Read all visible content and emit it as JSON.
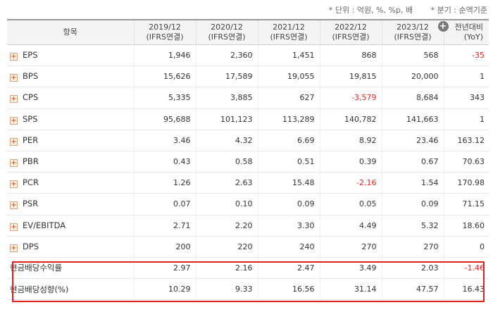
{
  "notes": {
    "unit": "* 단위 : 억원, %, %p, 배",
    "period": "* 분기 : 순액기준"
  },
  "header": {
    "item_label": "항목",
    "columns": [
      {
        "year": "2019/12",
        "basis": "(IFRS연결)"
      },
      {
        "year": "2020/12",
        "basis": "(IFRS연결)"
      },
      {
        "year": "2021/12",
        "basis": "(IFRS연결)"
      },
      {
        "year": "2022/12",
        "basis": "(IFRS연결)"
      },
      {
        "year": "2023/12",
        "basis": "(IFRS연결)"
      }
    ],
    "yoy": {
      "line1": "전년대비",
      "line2": "(YoY)"
    },
    "add_icon": "plus-circle-icon"
  },
  "rows": [
    {
      "name": "EPS",
      "values": [
        "1,946",
        "2,360",
        "1,451",
        "868",
        "568"
      ],
      "yoy": "-35",
      "neg": [
        false,
        false,
        false,
        false,
        false
      ],
      "yoy_neg": true
    },
    {
      "name": "BPS",
      "values": [
        "15,626",
        "17,589",
        "19,055",
        "19,815",
        "20,000"
      ],
      "yoy": "1",
      "neg": [
        false,
        false,
        false,
        false,
        false
      ],
      "yoy_neg": false
    },
    {
      "name": "CPS",
      "values": [
        "5,335",
        "3,885",
        "627",
        "-3,579",
        "8,684"
      ],
      "yoy": "343",
      "neg": [
        false,
        false,
        false,
        true,
        false
      ],
      "yoy_neg": false
    },
    {
      "name": "SPS",
      "values": [
        "95,688",
        "101,123",
        "113,289",
        "140,782",
        "141,663"
      ],
      "yoy": "1",
      "neg": [
        false,
        false,
        false,
        false,
        false
      ],
      "yoy_neg": false
    },
    {
      "name": "PER",
      "values": [
        "3.46",
        "4.32",
        "6.69",
        "8.92",
        "23.46"
      ],
      "yoy": "163.12",
      "neg": [
        false,
        false,
        false,
        false,
        false
      ],
      "yoy_neg": false
    },
    {
      "name": "PBR",
      "values": [
        "0.43",
        "0.58",
        "0.51",
        "0.39",
        "0.67"
      ],
      "yoy": "70.63",
      "neg": [
        false,
        false,
        false,
        false,
        false
      ],
      "yoy_neg": false
    },
    {
      "name": "PCR",
      "values": [
        "1.26",
        "2.63",
        "15.48",
        "-2.16",
        "1.54"
      ],
      "yoy": "170.98",
      "neg": [
        false,
        false,
        false,
        true,
        false
      ],
      "yoy_neg": false
    },
    {
      "name": "PSR",
      "values": [
        "0.07",
        "0.10",
        "0.09",
        "0.05",
        "0.09"
      ],
      "yoy": "71.15",
      "neg": [
        false,
        false,
        false,
        false,
        false
      ],
      "yoy_neg": false
    },
    {
      "name": "EV/EBITDA",
      "values": [
        "2.71",
        "2.20",
        "3.30",
        "4.49",
        "5.32"
      ],
      "yoy": "18.60",
      "neg": [
        false,
        false,
        false,
        false,
        false
      ],
      "yoy_neg": false
    },
    {
      "name": "DPS",
      "values": [
        "200",
        "220",
        "240",
        "270",
        "270"
      ],
      "yoy": "0",
      "neg": [
        false,
        false,
        false,
        false,
        false
      ],
      "yoy_neg": false
    }
  ],
  "highlight_rows": [
    {
      "name": "현금배당수익률",
      "values": [
        "2.97",
        "2.16",
        "2.47",
        "3.49",
        "2.03"
      ],
      "yoy": "-1.46",
      "yoy_neg": true
    },
    {
      "name": "현금배당성향(%)",
      "values": [
        "10.29",
        "9.33",
        "16.56",
        "31.14",
        "47.57"
      ],
      "yoy": "16.43",
      "yoy_neg": false
    }
  ],
  "colors": {
    "negative": "#e8261c",
    "highlight_border": "#e0201a",
    "expand_icon": "#e0601f"
  }
}
